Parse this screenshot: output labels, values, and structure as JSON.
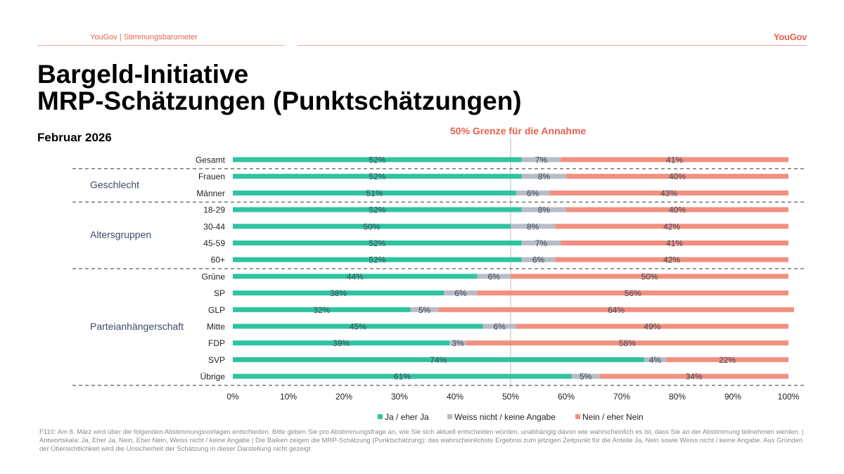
{
  "header": {
    "source": "YouGov | Stimmungsbarometer",
    "logo": "YouGov"
  },
  "title": {
    "line1": "Bargeld-Initiative",
    "line2": "MRP-Schätzungen (Punktschätzungen)"
  },
  "subtitle": "Februar 2026",
  "threshold_label": "50% Grenze für die Annahme",
  "colors": {
    "yes": "#2fc3a0",
    "unknown": "#b7bcc6",
    "no": "#f1907f",
    "accent": "#e4624f"
  },
  "chart_data": {
    "type": "bar",
    "orientation": "horizontal",
    "stacked": true,
    "xlim": [
      0,
      100
    ],
    "x_ticks": [
      "0%",
      "10%",
      "20%",
      "30%",
      "40%",
      "50%",
      "60%",
      "70%",
      "80%",
      "90%",
      "100%"
    ],
    "threshold": 50,
    "categories": [
      "Gesamt",
      "Frauen",
      "Männer",
      "18-29",
      "30-44",
      "45-59",
      "60+",
      "Grüne",
      "SP",
      "GLP",
      "Mitte",
      "FDP",
      "SVP",
      "Übrige"
    ],
    "groups": [
      {
        "name": "Geschlecht",
        "members": [
          "Frauen",
          "Männer"
        ]
      },
      {
        "name": "Altersgruppen",
        "members": [
          "18-29",
          "30-44",
          "45-59",
          "60+"
        ]
      },
      {
        "name": "Parteianhängerschaft",
        "members": [
          "Grüne",
          "SP",
          "GLP",
          "Mitte",
          "FDP",
          "SVP",
          "Übrige"
        ]
      }
    ],
    "series": [
      {
        "name": "Ja / eher Ja",
        "values": [
          52,
          52,
          51,
          52,
          50,
          52,
          52,
          44,
          38,
          32,
          45,
          39,
          74,
          61
        ]
      },
      {
        "name": "Weiss nicht / keine Angabe",
        "values": [
          7,
          8,
          6,
          8,
          8,
          7,
          6,
          6,
          6,
          5,
          6,
          3,
          4,
          5
        ]
      },
      {
        "name": "Nein / eher Nein",
        "values": [
          41,
          40,
          43,
          40,
          42,
          41,
          42,
          50,
          56,
          64,
          49,
          58,
          22,
          34
        ]
      }
    ]
  },
  "footnote": "F110: Am 8. März wird über die folgenden Abstimmungsvorlagen entschieden. Bitte geben Sie pro Abstimmungsfrage an, wie Sie sich aktuell entscheiden würden, unabhängig davon wie wahrscheinlich es ist, dass Sie an der Abstimmung teilnehmen werden. | Antwortskala: Ja, Eher Ja, Nein, Eher Nein, Weiss nicht / keine Angabe | Die Balken zeigen die MRP-Schätzung (Punktschätzung): das wahrscheinlichste Ergebnis zum jetzigen Zeitpunkt für die Anteile Ja, Nein sowie Weiss nicht / keine Angabe. Aus Gründen der Übersichtlichkeit wird die Unsicherheit der Schätzung in dieser Darstellung nicht gezeigt"
}
